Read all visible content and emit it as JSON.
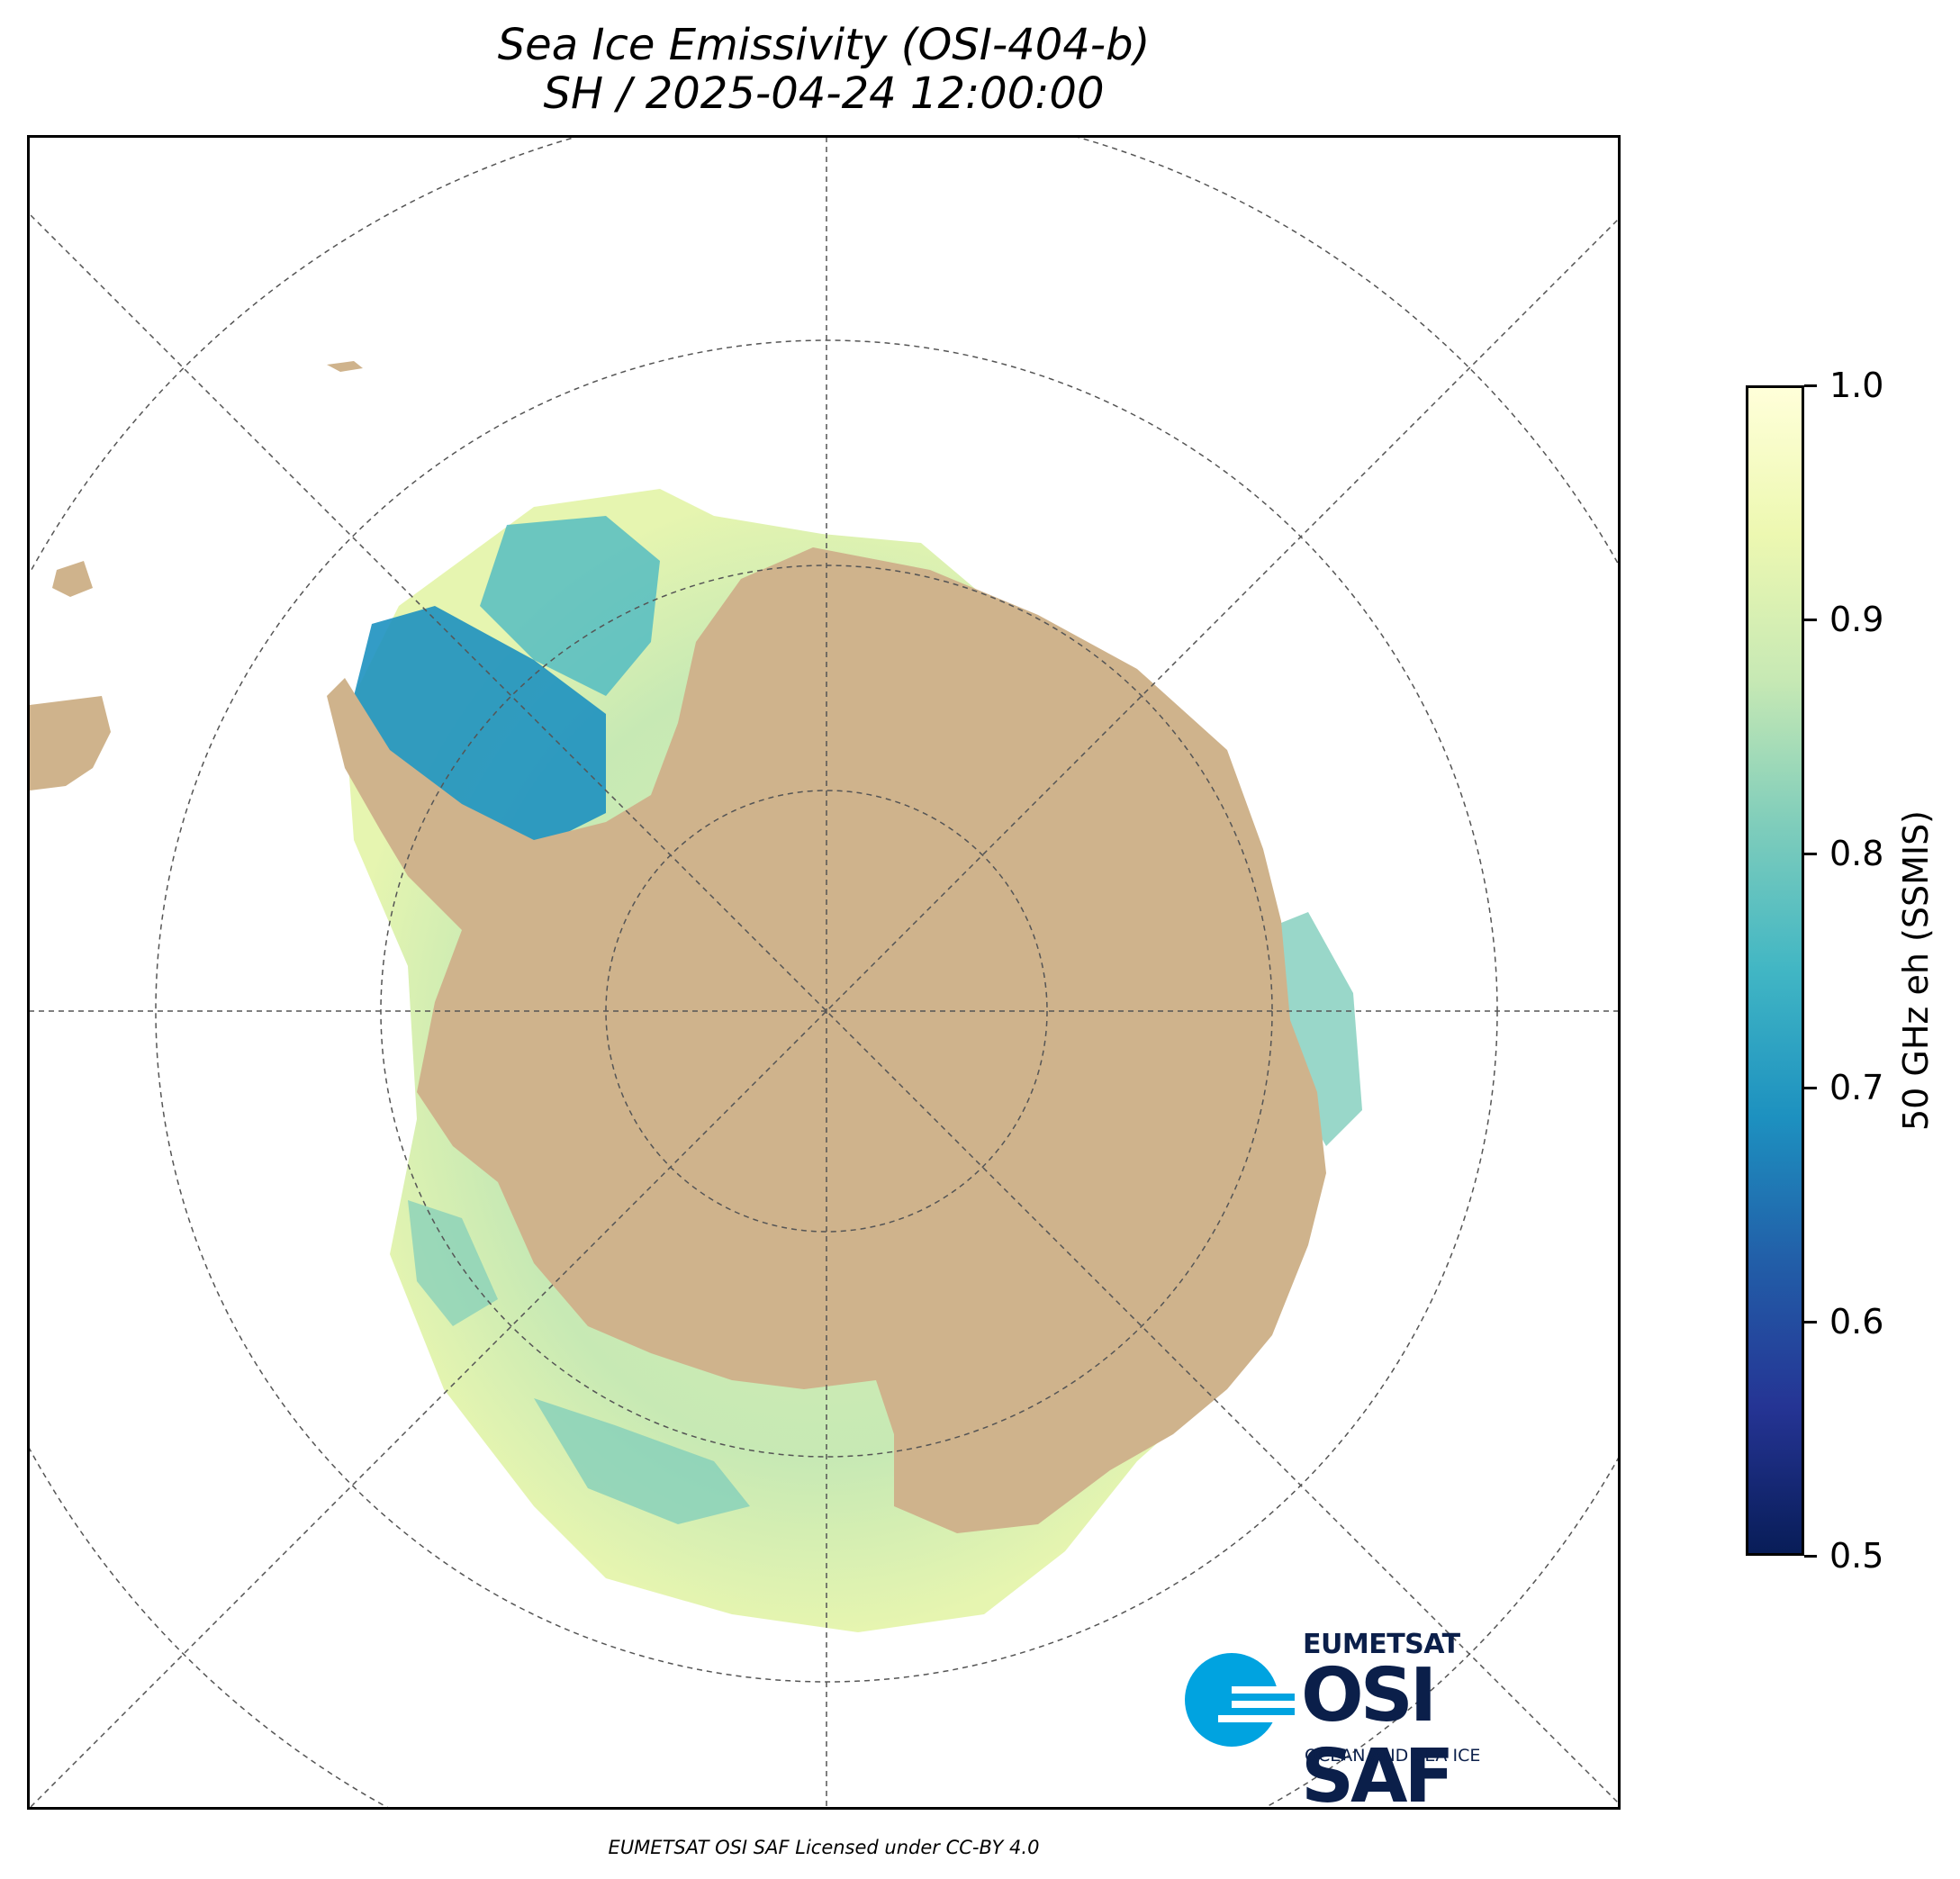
{
  "figure": {
    "title_line1": "Sea Ice Emissivity (OSI-404-b)",
    "title_line2": "SH / 2025-04-24 12:00:00",
    "credit": "EUMETSAT OSI SAF Licensed under CC-BY 4.0"
  },
  "map": {
    "projection": "south polar stereographic",
    "gridlines": "dashed",
    "land_color": "#cfb38c",
    "no_data_color": "#ffffff"
  },
  "colorbar": {
    "label": "50 GHz eh (SSMIS)",
    "colormap": "YlGnBu_r",
    "vmin": 0.5,
    "vmax": 1.0,
    "ticks": [
      "0.5",
      "0.6",
      "0.7",
      "0.8",
      "0.9",
      "1.0"
    ],
    "tick_values": [
      0.5,
      0.6,
      0.7,
      0.8,
      0.9,
      1.0
    ],
    "colors": [
      "#081d58",
      "#253494",
      "#225ea8",
      "#1d91c0",
      "#41b6c4",
      "#7fcdbb",
      "#c7e9b4",
      "#edf8b1",
      "#ffffd9"
    ]
  },
  "logo": {
    "line1": "EUMETSAT",
    "line2": "OSI SAF",
    "line3": "OCEAN AND SEA ICE",
    "primary_color": "#0b1f4a",
    "accent_color": "#00a3e0"
  }
}
